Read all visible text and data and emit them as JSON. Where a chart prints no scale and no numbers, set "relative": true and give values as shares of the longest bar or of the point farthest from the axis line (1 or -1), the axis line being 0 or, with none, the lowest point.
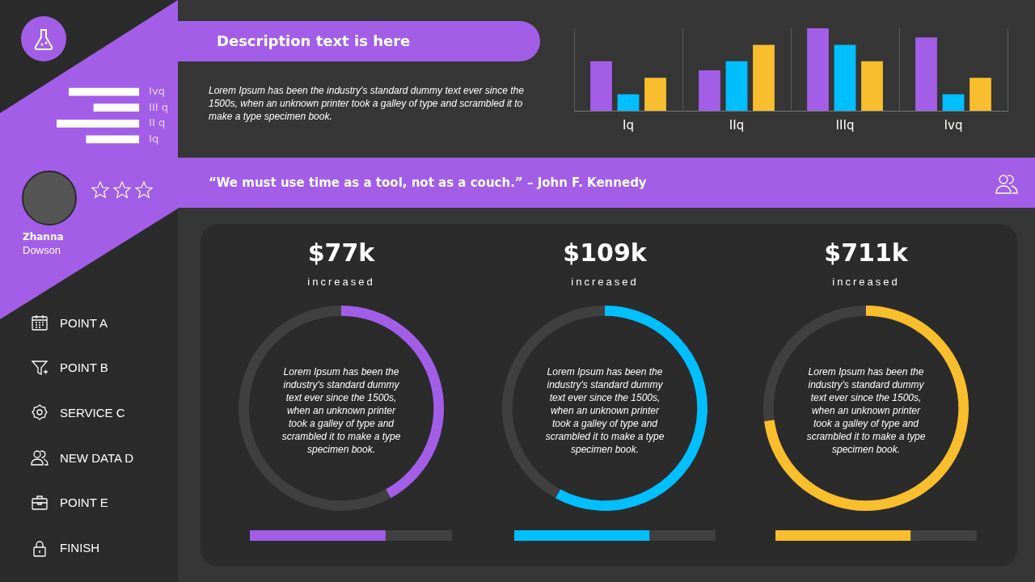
{
  "chart_data": [
    {
      "type": "other",
      "annotations": [
        "Zhanna",
        "Dowson"
      ]
    },
    {
      "type": "bar",
      "orientation": "horizontal",
      "relative": true,
      "categories": [
        "Ivq",
        "III q",
        "II q",
        "Iq"
      ],
      "values": [
        0.85,
        0.55,
        1,
        0.64
      ],
      "color": "#ffffff"
    },
    {
      "type": "other",
      "annotations": [
        "POINT A",
        "POINT B",
        "SERVICE C",
        "NEW DATA D",
        "POINT E",
        "FINISH"
      ]
    },
    {
      "type": "other",
      "title": "Description text is here",
      "annotations": [
        "Lorem Ipsum has been the industry's standard dummy text ever since the 1500s, when an unknown printer took a galley of type and scrambled it to make a type specimen book."
      ]
    },
    {
      "type": "bar",
      "relative": true,
      "grid": "x",
      "categories": [
        "Iq",
        "IIq",
        "IIIq",
        "Ivq"
      ],
      "series": [
        {
          "color": "#a35ee8",
          "values": [
            0.6,
            0.49,
            1,
            0.89
          ]
        },
        {
          "color": "#00bfff",
          "values": [
            0.2,
            0.6,
            0.8,
            0.2
          ]
        },
        {
          "color": "#f8be2d",
          "values": [
            0.4,
            0.8,
            0.6,
            0.4
          ]
        }
      ]
    },
    {
      "type": "other",
      "title": "“We must use time as a tool, not as a couch.” – John F. Kennedy"
    },
    {
      "type": "donut",
      "title": "$77k",
      "subtitle": "increased",
      "categories": [
        null,
        null
      ],
      "values": [
        42,
        58
      ],
      "colors": [
        "#a35ee8",
        "#404040"
      ],
      "annotations": [
        "Lorem Ipsum has been the industry's standard dummy text ever since the 1500s, when an unknown printer took a galley of type and scrambled it to make a type specimen book."
      ]
    },
    {
      "type": "donut",
      "title": "$109k",
      "subtitle": "increased",
      "categories": [
        null,
        null
      ],
      "values": [
        58,
        42
      ],
      "colors": [
        "#00bfff",
        "#404040"
      ],
      "annotations": [
        "Lorem Ipsum has been the industry's standard dummy text ever since the 1500s, when an unknown printer took a galley of type and scrambled it to make a type specimen book."
      ]
    },
    {
      "type": "donut",
      "title": "$711k",
      "subtitle": "increased",
      "categories": [
        null,
        null
      ],
      "values": [
        73,
        27
      ],
      "colors": [
        "#f8be2d",
        "#404040"
      ],
      "annotations": [
        "Lorem Ipsum has been the industry's standard dummy text ever since the 1500s, when an unknown printer took a galley of type and scrambled it to make a type specimen book."
      ]
    },
    {
      "type": "bar",
      "orientation": "horizontal",
      "stacked": true,
      "relative": true,
      "categories": [
        null
      ],
      "series": [
        {
          "color": "#a35ee8",
          "values": [
            0.67
          ]
        },
        {
          "color": "#404040",
          "values": [
            0.33
          ]
        }
      ]
    },
    {
      "type": "bar",
      "orientation": "horizontal",
      "stacked": true,
      "relative": true,
      "categories": [
        null
      ],
      "series": [
        {
          "color": "#00bfff",
          "values": [
            0.67
          ]
        },
        {
          "color": "#404040",
          "values": [
            0.33
          ]
        }
      ]
    },
    {
      "type": "bar",
      "orientation": "horizontal",
      "stacked": true,
      "relative": true,
      "categories": [
        null
      ],
      "series": [
        {
          "color": "#f8be2d",
          "values": [
            0.67
          ]
        },
        {
          "color": "#404040",
          "values": [
            0.33
          ]
        }
      ]
    }
  ]
}
